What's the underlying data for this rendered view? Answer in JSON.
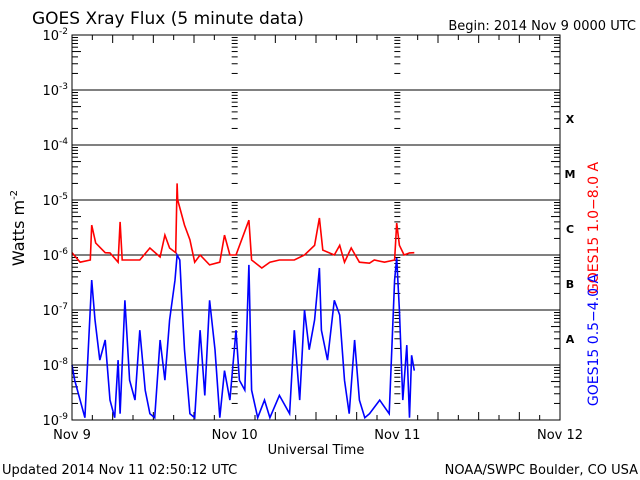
{
  "chart_data": {
    "type": "line",
    "title": "GOES Xray Flux (5 minute data)",
    "begin_label": "Begin:  2014 Nov 9 0000 UTC",
    "xlabel": "Universal Time",
    "ylabel": "Watts m",
    "ylabel_sup": "-2",
    "x_unit": "hours since 2014 Nov 9 0000 UTC",
    "xlim": [
      0,
      72
    ],
    "ylim": [
      1e-09,
      0.01
    ],
    "yscale": "log",
    "grid": true,
    "x_ticks": [
      {
        "hour": 0,
        "label": "Nov 9"
      },
      {
        "hour": 24,
        "label": "Nov 10"
      },
      {
        "hour": 48,
        "label": "Nov 11"
      },
      {
        "hour": 72,
        "label": "Nov 12"
      }
    ],
    "y_ticks": [
      {
        "value": 0.01,
        "exp": "-2"
      },
      {
        "value": 0.001,
        "exp": "-3"
      },
      {
        "value": 0.0001,
        "exp": "-4"
      },
      {
        "value": 1e-05,
        "exp": "-5"
      },
      {
        "value": 1e-06,
        "exp": "-6"
      },
      {
        "value": 1e-07,
        "exp": "-7"
      },
      {
        "value": 1e-08,
        "exp": "-8"
      },
      {
        "value": 1e-09,
        "exp": "-9"
      }
    ],
    "flare_classes": [
      {
        "label": "X",
        "value": 0.0003
      },
      {
        "label": "M",
        "value": 3e-05
      },
      {
        "label": "C",
        "value": 3e-06
      },
      {
        "label": "B",
        "value": 3e-07
      },
      {
        "label": "A",
        "value": 3e-08
      }
    ],
    "series": [
      {
        "name": "GOES15 1.0−8.0 A",
        "color": "#ff0000",
        "points": [
          [
            0,
            1.1e-06
          ],
          [
            1.2,
            7.4e-07
          ],
          [
            2.7,
            8.1e-07
          ],
          [
            2.9,
            3.5e-06
          ],
          [
            3.5,
            1.65e-06
          ],
          [
            4.9,
            1.1e-06
          ],
          [
            5.6,
            1.09e-06
          ],
          [
            6.8,
            7.4e-07
          ],
          [
            7.1,
            4e-06
          ],
          [
            7.4,
            8.1e-07
          ],
          [
            10,
            8.1e-07
          ],
          [
            11.5,
            1.34e-06
          ],
          [
            13,
            9.2e-07
          ],
          [
            13.7,
            2.3e-06
          ],
          [
            14.4,
            1.34e-06
          ],
          [
            15.3,
            1.1e-06
          ],
          [
            15.5,
            2e-05
          ],
          [
            15.6,
            1e-05
          ],
          [
            16.6,
            3.5e-06
          ],
          [
            17.4,
            1.9e-06
          ],
          [
            18.1,
            7.4e-07
          ],
          [
            18.9,
            1e-06
          ],
          [
            20.3,
            6.6e-07
          ],
          [
            21.8,
            7.4e-07
          ],
          [
            22.5,
            2.3e-06
          ],
          [
            23.3,
            1e-06
          ],
          [
            24.2,
            1e-06
          ],
          [
            26.1,
            4.3e-06
          ],
          [
            26.5,
            8.1e-07
          ],
          [
            28,
            5.8e-07
          ],
          [
            29.2,
            7.4e-07
          ],
          [
            30.6,
            8.1e-07
          ],
          [
            32.8,
            8.1e-07
          ],
          [
            34.3,
            1e-06
          ],
          [
            35.8,
            1.5e-06
          ],
          [
            36.5,
            4.7e-06
          ],
          [
            37,
            1.23e-06
          ],
          [
            38.7,
            1e-06
          ],
          [
            39.5,
            1.5e-06
          ],
          [
            40.2,
            7.4e-07
          ],
          [
            41.2,
            1.34e-06
          ],
          [
            42.4,
            7.4e-07
          ],
          [
            43.9,
            7.1e-07
          ],
          [
            44.6,
            8.1e-07
          ],
          [
            46.1,
            7.4e-07
          ],
          [
            47.6,
            8.1e-07
          ],
          [
            47.9,
            3.8e-06
          ],
          [
            48.3,
            1.5e-06
          ],
          [
            49,
            1e-06
          ],
          [
            49.8,
            1.09e-06
          ],
          [
            50.5,
            1.1e-06
          ]
        ]
      },
      {
        "name": "GOES15 0.5−4.0 A",
        "color": "#0000ff",
        "points": [
          [
            0,
            1e-08
          ],
          [
            0.4,
            5.3e-09
          ],
          [
            1.2,
            2.3e-09
          ],
          [
            1.9,
            1.1e-09
          ],
          [
            2.9,
            3.5e-07
          ],
          [
            3.4,
            6.6e-08
          ],
          [
            4.1,
            1.23e-08
          ],
          [
            4.9,
            2.85e-08
          ],
          [
            5.6,
            2.3e-09
          ],
          [
            6.3,
            1.1e-09
          ],
          [
            6.8,
            1.23e-08
          ],
          [
            7.1,
            1.3e-09
          ],
          [
            7.8,
            1.5e-07
          ],
          [
            8.5,
            5.3e-09
          ],
          [
            9.3,
            2.3e-09
          ],
          [
            10,
            4.3e-08
          ],
          [
            10.8,
            3.5e-09
          ],
          [
            11.5,
            1.3e-09
          ],
          [
            12.2,
            1.1e-09
          ],
          [
            13,
            2.85e-08
          ],
          [
            13.7,
            5.3e-09
          ],
          [
            14.4,
            6.6e-08
          ],
          [
            15.2,
            3.5e-07
          ],
          [
            15.5,
            1e-06
          ],
          [
            15.9,
            8.1e-07
          ],
          [
            16.2,
            1.5e-07
          ],
          [
            16.6,
            1.9e-08
          ],
          [
            17.4,
            1.3e-09
          ],
          [
            18.1,
            1.1e-09
          ],
          [
            18.9,
            4.3e-08
          ],
          [
            19.6,
            2.8e-09
          ],
          [
            20.3,
            1.5e-07
          ],
          [
            21.1,
            1.9e-08
          ],
          [
            21.8,
            1.1e-09
          ],
          [
            22.5,
            7.9e-09
          ],
          [
            23.3,
            2.3e-09
          ],
          [
            24.2,
            4.3e-08
          ],
          [
            24.7,
            5.3e-09
          ],
          [
            25.5,
            3.5e-09
          ],
          [
            26.1,
            6.6e-07
          ],
          [
            26.5,
            3.5e-09
          ],
          [
            27.4,
            1.1e-09
          ],
          [
            28.4,
            2.3e-09
          ],
          [
            29.2,
            1.1e-09
          ],
          [
            30.6,
            2.8e-09
          ],
          [
            32.1,
            1.3e-09
          ],
          [
            32.8,
            4.3e-08
          ],
          [
            33.6,
            2.3e-09
          ],
          [
            34.3,
            1e-07
          ],
          [
            35,
            1.9e-08
          ],
          [
            35.8,
            6.6e-08
          ],
          [
            36.5,
            5.8e-07
          ],
          [
            36.8,
            4.3e-08
          ],
          [
            37.7,
            1.23e-08
          ],
          [
            38.7,
            1.5e-07
          ],
          [
            39.5,
            8.1e-08
          ],
          [
            40.2,
            5.3e-09
          ],
          [
            40.9,
            1.3e-09
          ],
          [
            41.7,
            2.85e-08
          ],
          [
            42.4,
            2.3e-09
          ],
          [
            43.2,
            1.1e-09
          ],
          [
            43.9,
            1.3e-09
          ],
          [
            45.4,
            2.3e-09
          ],
          [
            46.8,
            1.3e-09
          ],
          [
            47.6,
            3.5e-07
          ],
          [
            47.9,
            8.8e-07
          ],
          [
            48.3,
            1e-07
          ],
          [
            48.8,
            2.3e-09
          ],
          [
            49.4,
            2.3e-08
          ],
          [
            49.8,
            1.1e-09
          ],
          [
            50.1,
            1.5e-08
          ],
          [
            50.5,
            7.9e-09
          ]
        ]
      }
    ]
  },
  "footer": {
    "updated": "Updated 2014 Nov 11 02:50:12 UTC",
    "credit": "NOAA/SWPC Boulder, CO USA"
  }
}
